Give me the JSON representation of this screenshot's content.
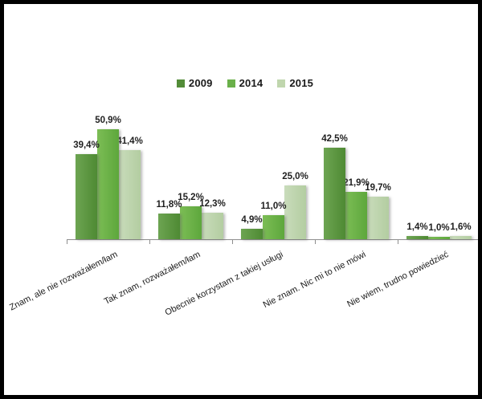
{
  "chart_data": {
    "type": "bar",
    "title": "",
    "xlabel": "",
    "ylabel": "",
    "grid": false,
    "legend_position": "top",
    "value_suffix": "%",
    "ylim": [
      0,
      55
    ],
    "categories": [
      "Znam, ale nie rozważałem/łam",
      "Tak znam, rozważałem/łam",
      "Obecnie korzystam z takiej usługi",
      "Nie znam. Nic mi to nie mówi",
      "Nie wiem, trudno powiedzieć"
    ],
    "series": [
      {
        "name": "2009",
        "values": [
          39.4,
          11.8,
          4.9,
          42.5,
          1.4
        ],
        "labels": [
          "39,4%",
          "11,8%",
          "4,9%",
          "42,5%",
          "1,4%"
        ],
        "color_light": "#6da452",
        "color_dark": "#4e8a33",
        "legend_color": "#538c38"
      },
      {
        "name": "2014",
        "values": [
          50.9,
          15.2,
          11.0,
          21.9,
          1.0
        ],
        "labels": [
          "50,9%",
          "15,2%",
          "11,0%",
          "21,9%",
          "1,0%"
        ],
        "color_light": "#7cbd55",
        "color_dark": "#5da73c",
        "legend_color": "#6ab04a"
      },
      {
        "name": "2015",
        "values": [
          41.4,
          12.3,
          25.0,
          19.7,
          1.6
        ],
        "labels": [
          "41,4%",
          "12,3%",
          "25,0%",
          "19,7%",
          "1,6%"
        ],
        "color_light": "#c9dcbb",
        "color_dark": "#b3cda1",
        "legend_color": "#c0d6ae"
      }
    ],
    "colors": {
      "axis": "#8e8e8e",
      "value_label": "#1f1f1f",
      "category_label": "#1a1a1a",
      "frame_border": "#000000",
      "background": "#ffffff"
    }
  }
}
